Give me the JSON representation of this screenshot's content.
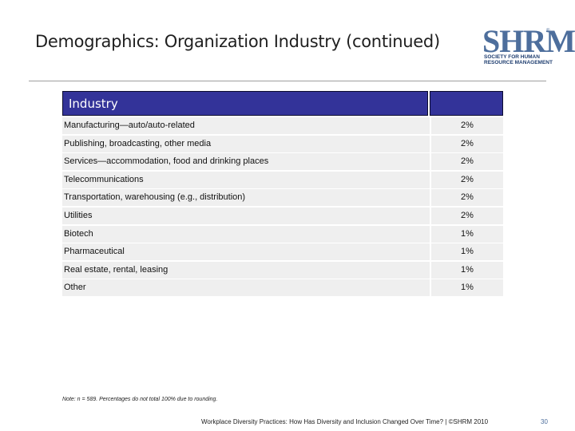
{
  "slide": {
    "title": "Demographics: Organization Industry (continued)",
    "logo": {
      "mark": "SHRM",
      "registered": "®",
      "line1": "SOCIETY FOR HUMAN",
      "line2": "RESOURCE MANAGEMENT"
    }
  },
  "table": {
    "header": "Industry",
    "rows": [
      {
        "label": "Manufacturing—auto/auto-related",
        "value": "2%"
      },
      {
        "label": "Publishing, broadcasting, other media",
        "value": "2%"
      },
      {
        "label": "Services—accommodation, food and drinking places",
        "value": "2%"
      },
      {
        "label": "Telecommunications",
        "value": "2%"
      },
      {
        "label": "Transportation, warehousing (e.g., distribution)",
        "value": "2%"
      },
      {
        "label": "Utilities",
        "value": "2%"
      },
      {
        "label": "Biotech",
        "value": "1%"
      },
      {
        "label": "Pharmaceutical",
        "value": "1%"
      },
      {
        "label": "Real estate, rental, leasing",
        "value": "1%"
      },
      {
        "label": "Other",
        "value": "1%"
      }
    ]
  },
  "note": "Note: n = 589. Percentages do not total 100% due to rounding.",
  "footer": {
    "text": "Workplace Diversity Practices: How Has Diversity and Inclusion Changed Over Time? | ©SHRM 2010",
    "page": "30"
  }
}
